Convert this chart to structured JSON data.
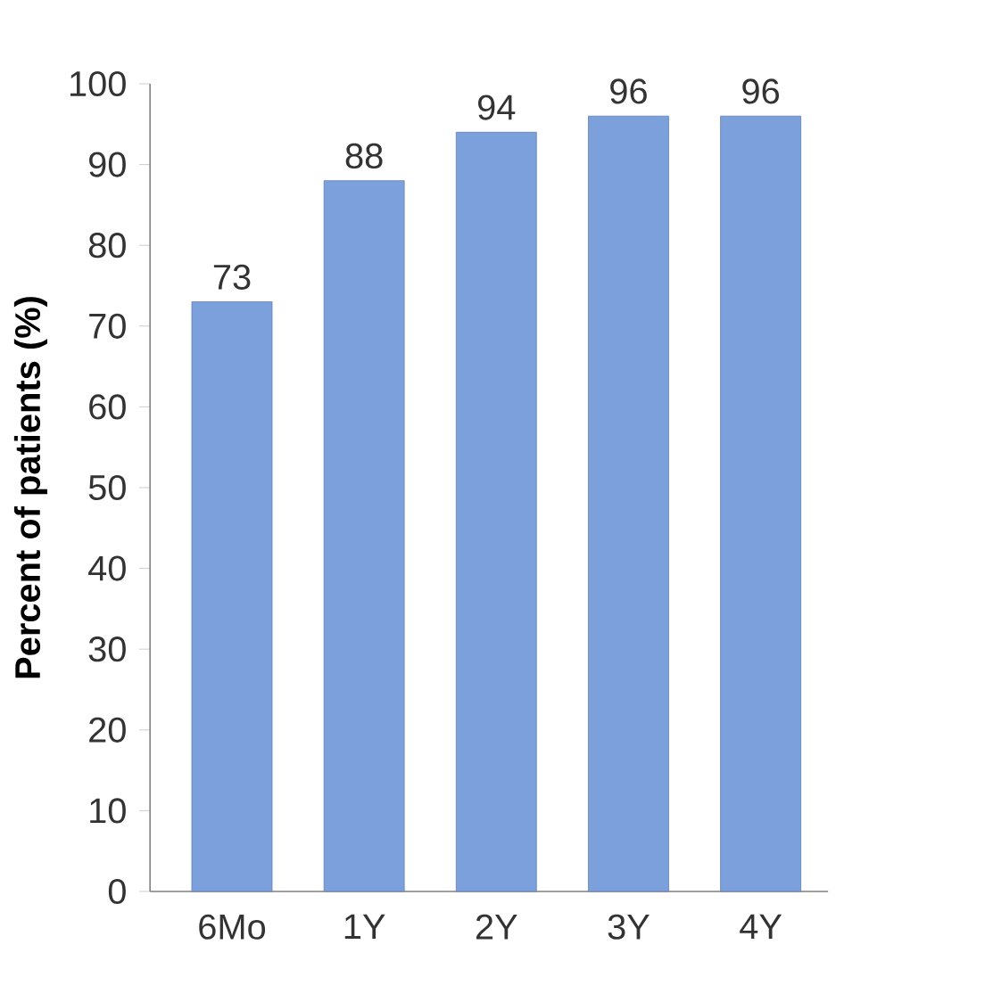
{
  "chart_data": {
    "type": "bar",
    "ylabel": "Percent of patients (%)",
    "categories": [
      "6Mo",
      "1Y",
      "2Y",
      "3Y",
      "4Y"
    ],
    "values": [
      73,
      88,
      94,
      96,
      96
    ],
    "color": "#7ba0dc",
    "ylim": [
      0,
      100
    ],
    "yticks": [
      0,
      10,
      20,
      30,
      40,
      50,
      60,
      70,
      80,
      90,
      100
    ],
    "data_labels": true
  }
}
